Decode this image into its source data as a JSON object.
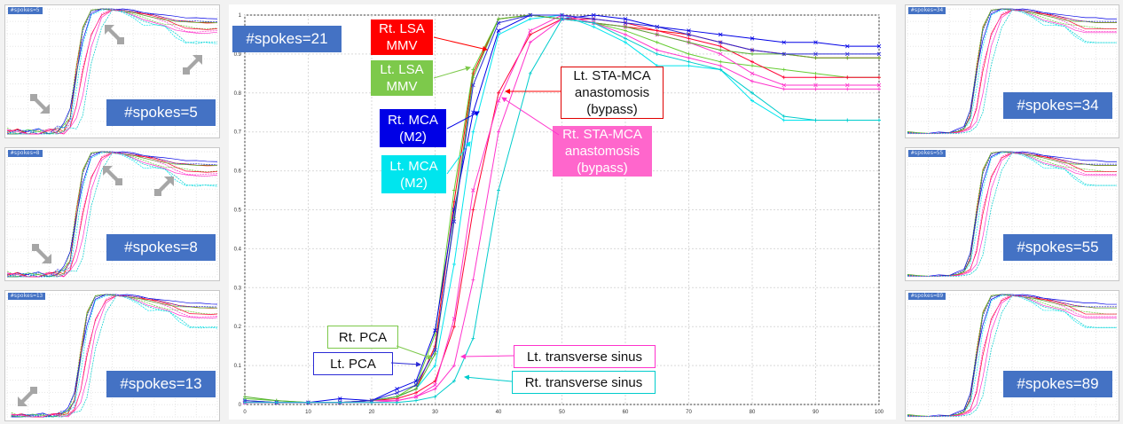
{
  "colors": {
    "rt_lsa": "#ff0000",
    "lt_lsa": "#66cc33",
    "rt_mca": "#0000e6",
    "lt_mca": "#00e5ee",
    "rt_sta": "#ff33cc",
    "lt_sta": "#ff0033",
    "rt_pca": "#55b030",
    "lt_pca": "#2b2bd6",
    "lt_ts": "#ff33cc",
    "rt_ts": "#00cccc",
    "label_blue": "#4472c4",
    "arrow_gray": "#a6a6a6"
  },
  "panels": {
    "p5": {
      "tag": "#spokes=5",
      "label": "#spokes=5"
    },
    "p8": {
      "tag": "#spokes=8",
      "label": "#spokes=8"
    },
    "p13": {
      "tag": "#spokes=13",
      "label": "#spokes=13"
    },
    "p34": {
      "tag": "#spokes=34",
      "label": "#spokes=34"
    },
    "p55": {
      "tag": "#spokes=55",
      "label": "#spokes=55"
    },
    "p89": {
      "tag": "#spokes=89",
      "label": "#spokes=89"
    }
  },
  "main_label": "#spokes=21",
  "callouts": {
    "rt_lsa": [
      "Rt. LSA",
      "MMV"
    ],
    "lt_lsa": [
      "Lt. LSA",
      "MMV"
    ],
    "rt_mca": [
      "Rt. MCA",
      "(M2)"
    ],
    "lt_mca": [
      "Lt. MCA",
      "(M2)"
    ],
    "lt_sta": [
      "Lt. STA-MCA",
      "anastomosis",
      "(bypass)"
    ],
    "rt_sta": [
      "Rt. STA-MCA",
      "anastomosis",
      "(bypass)"
    ],
    "rt_pca": "Rt. PCA",
    "lt_pca": "Lt. PCA",
    "lt_ts": "Lt. transverse sinus",
    "rt_ts": "Rt. transverse sinus"
  },
  "chart_data": [
    {
      "type": "line",
      "xlim": [
        0,
        100
      ],
      "ylim": [
        0,
        1
      ],
      "grid": true,
      "xticks": [
        "0",
        "10",
        "20",
        "30",
        "40",
        "50",
        "60",
        "70",
        "80",
        "90",
        "100"
      ],
      "yticks": [
        "0",
        "0.1",
        "0.2",
        "0.3",
        "0.4",
        "0.5",
        "0.6",
        "0.7",
        "0.8",
        "0.9",
        "1"
      ],
      "series": [
        {
          "name": "Rt. LSA MMV",
          "color": "#ff0000",
          "marker": "+",
          "x": [
            0,
            5,
            10,
            15,
            20,
            24,
            27,
            30,
            33,
            36,
            40,
            45,
            50,
            55,
            60,
            65,
            70,
            75,
            80,
            85,
            90,
            95,
            100
          ],
          "y": [
            0.01,
            0.005,
            0.005,
            0.005,
            0.01,
            0.02,
            0.04,
            0.15,
            0.52,
            0.85,
            0.99,
            1.0,
            0.99,
            0.98,
            0.97,
            0.96,
            0.95,
            0.93,
            0.91,
            0.9,
            0.89,
            0.89,
            0.89
          ]
        },
        {
          "name": "Lt. LSA MMV",
          "color": "#66cc33",
          "marker": "+",
          "x": [
            0,
            5,
            10,
            15,
            20,
            24,
            27,
            30,
            33,
            36,
            40,
            45,
            50,
            55,
            60,
            65,
            70,
            75,
            80,
            85,
            90,
            95,
            100
          ],
          "y": [
            0.015,
            0.01,
            0.005,
            0.005,
            0.01,
            0.02,
            0.05,
            0.18,
            0.55,
            0.86,
            0.99,
            1.0,
            1.0,
            0.98,
            0.96,
            0.93,
            0.9,
            0.88,
            0.87,
            0.86,
            0.85,
            0.84,
            0.84
          ]
        },
        {
          "name": "Rt. MCA (M2)",
          "color": "#0000e6",
          "marker": "x",
          "x": [
            0,
            5,
            10,
            15,
            20,
            24,
            27,
            30,
            33,
            36,
            40,
            45,
            50,
            55,
            60,
            65,
            70,
            75,
            80,
            85,
            90,
            95,
            100
          ],
          "y": [
            0.005,
            0.005,
            0.005,
            0.015,
            0.01,
            0.04,
            0.06,
            0.19,
            0.5,
            0.75,
            0.96,
            1.0,
            0.99,
            1.0,
            0.99,
            0.97,
            0.96,
            0.95,
            0.94,
            0.93,
            0.93,
            0.92,
            0.92
          ]
        },
        {
          "name": "Lt. MCA (M2)",
          "color": "#00e5ee",
          "marker": "+",
          "x": [
            0,
            5,
            10,
            15,
            20,
            24,
            27,
            30,
            33,
            36,
            40,
            45,
            50,
            55,
            60,
            65,
            70,
            75,
            80,
            85,
            90,
            95,
            100
          ],
          "y": [
            0.01,
            0.005,
            0.005,
            0.005,
            0.01,
            0.02,
            0.04,
            0.1,
            0.36,
            0.7,
            0.95,
            0.99,
            1.0,
            0.97,
            0.93,
            0.87,
            0.87,
            0.86,
            0.78,
            0.73,
            0.73,
            0.73,
            0.73
          ]
        },
        {
          "name": "Lt. STA-MCA anastomosis (bypass)",
          "color": "#ff0033",
          "marker": "+",
          "x": [
            0,
            5,
            10,
            15,
            20,
            24,
            27,
            30,
            33,
            36,
            40,
            45,
            50,
            55,
            60,
            65,
            70,
            75,
            80,
            85,
            90,
            95,
            100
          ],
          "y": [
            0.005,
            0.005,
            0.005,
            0.005,
            0.01,
            0.015,
            0.03,
            0.06,
            0.2,
            0.5,
            0.8,
            0.95,
            0.99,
            0.99,
            0.98,
            0.96,
            0.94,
            0.92,
            0.88,
            0.84,
            0.84,
            0.84,
            0.84
          ]
        },
        {
          "name": "Rt. STA-MCA anastomosis (bypass)",
          "color": "#ff33cc",
          "marker": "x",
          "x": [
            0,
            5,
            10,
            15,
            20,
            24,
            27,
            30,
            33,
            36,
            40,
            45,
            50,
            55,
            60,
            65,
            70,
            75,
            80,
            85,
            90,
            95,
            100
          ],
          "y": [
            0.005,
            0.005,
            0.005,
            0.005,
            0.01,
            0.01,
            0.02,
            0.05,
            0.22,
            0.55,
            0.78,
            0.96,
            1.0,
            0.98,
            0.97,
            0.95,
            0.93,
            0.9,
            0.85,
            0.82,
            0.82,
            0.82,
            0.82
          ]
        },
        {
          "name": "Rt. PCA",
          "color": "#55b030",
          "marker": "+",
          "x": [
            0,
            5,
            10,
            15,
            20,
            24,
            27,
            30,
            33,
            36,
            40,
            45,
            50,
            55,
            60,
            65,
            70,
            75,
            80,
            85,
            90,
            95,
            100
          ],
          "y": [
            0.02,
            0.01,
            0.005,
            0.005,
            0.01,
            0.02,
            0.04,
            0.13,
            0.48,
            0.84,
            0.99,
            1.0,
            0.99,
            0.98,
            0.97,
            0.95,
            0.93,
            0.91,
            0.9,
            0.9,
            0.89,
            0.89,
            0.89
          ]
        },
        {
          "name": "Lt. PCA",
          "color": "#2b2bd6",
          "marker": "x",
          "x": [
            0,
            5,
            10,
            15,
            20,
            24,
            27,
            30,
            33,
            36,
            40,
            45,
            50,
            55,
            60,
            65,
            70,
            75,
            80,
            85,
            90,
            95,
            100
          ],
          "y": [
            0.01,
            0.005,
            0.005,
            0.005,
            0.01,
            0.03,
            0.05,
            0.14,
            0.47,
            0.82,
            0.98,
            1.0,
            1.0,
            0.99,
            0.98,
            0.97,
            0.95,
            0.93,
            0.91,
            0.9,
            0.9,
            0.9,
            0.9
          ]
        },
        {
          "name": "Lt. transverse sinus",
          "color": "#ff33cc",
          "marker": "+",
          "x": [
            0,
            5,
            10,
            15,
            20,
            24,
            27,
            30,
            33,
            36,
            40,
            45,
            50,
            55,
            60,
            65,
            70,
            75,
            80,
            85,
            90,
            95,
            100
          ],
          "y": [
            0.005,
            0.005,
            0.005,
            0.005,
            0.005,
            0.01,
            0.02,
            0.04,
            0.1,
            0.32,
            0.7,
            0.93,
            0.99,
            0.98,
            0.95,
            0.91,
            0.89,
            0.87,
            0.83,
            0.81,
            0.81,
            0.81,
            0.81
          ]
        },
        {
          "name": "Rt. transverse sinus",
          "color": "#00cccc",
          "marker": "+",
          "x": [
            0,
            5,
            10,
            15,
            20,
            24,
            27,
            30,
            33,
            36,
            40,
            45,
            50,
            55,
            60,
            65,
            70,
            75,
            80,
            85,
            90,
            95,
            100
          ],
          "y": [
            0.005,
            0.005,
            0.005,
            0.005,
            0.005,
            0.005,
            0.01,
            0.02,
            0.06,
            0.17,
            0.55,
            0.85,
            0.99,
            0.98,
            0.94,
            0.9,
            0.88,
            0.86,
            0.8,
            0.74,
            0.73,
            0.73,
            0.73
          ]
        }
      ]
    }
  ]
}
